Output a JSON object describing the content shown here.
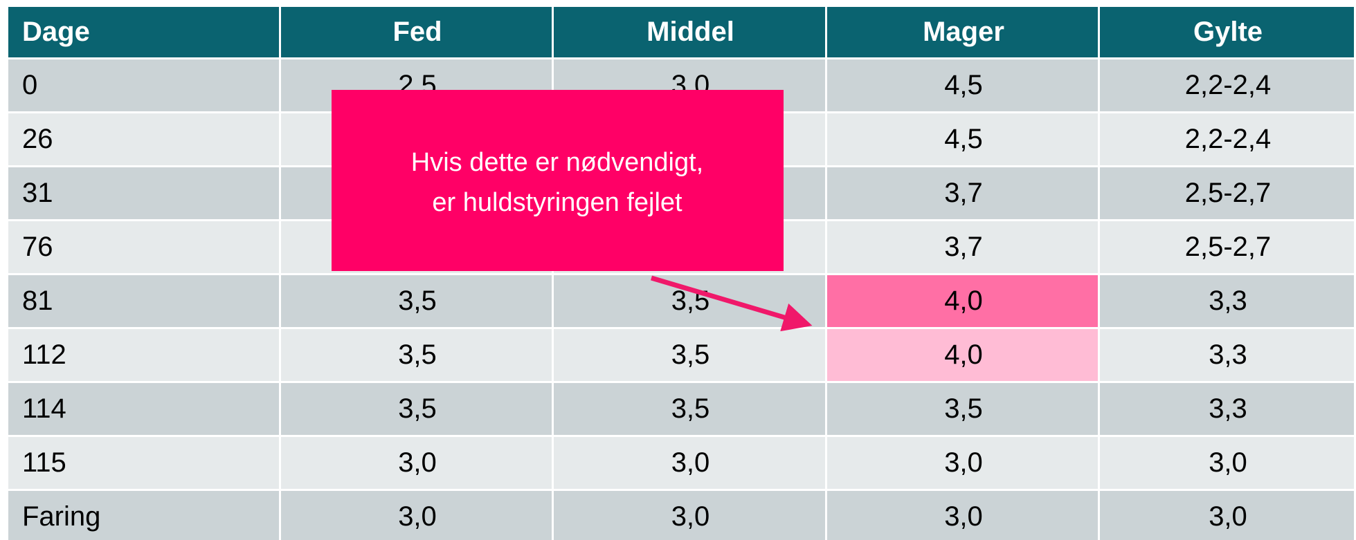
{
  "table": {
    "header": [
      "Dage",
      "Fed",
      "Middel",
      "Mager",
      "Gylte"
    ],
    "rows": [
      [
        "0",
        "2,5",
        "3,0",
        "4,5",
        "2,2-2,4"
      ],
      [
        "26",
        null,
        null,
        "4,5",
        "2,2-2,4"
      ],
      [
        "31",
        null,
        null,
        "3,7",
        "2,5-2,7"
      ],
      [
        "76",
        null,
        null,
        "3,7",
        "2,5-2,7"
      ],
      [
        "81",
        "3,5",
        "3,5",
        "4,0",
        "3,3"
      ],
      [
        "112",
        "3,5",
        "3,5",
        "4,0",
        "3,3"
      ],
      [
        "114",
        "3,5",
        "3,5",
        "3,5",
        "3,3"
      ],
      [
        "115",
        "3,0",
        "3,0",
        "3,0",
        "3,0"
      ],
      [
        "Faring",
        "3,0",
        "3,0",
        "3,0",
        "3,0"
      ]
    ]
  },
  "callout": {
    "lines": [
      "Hvis dette er nødvendigt,",
      "er huldstyringen fejlet"
    ]
  }
}
